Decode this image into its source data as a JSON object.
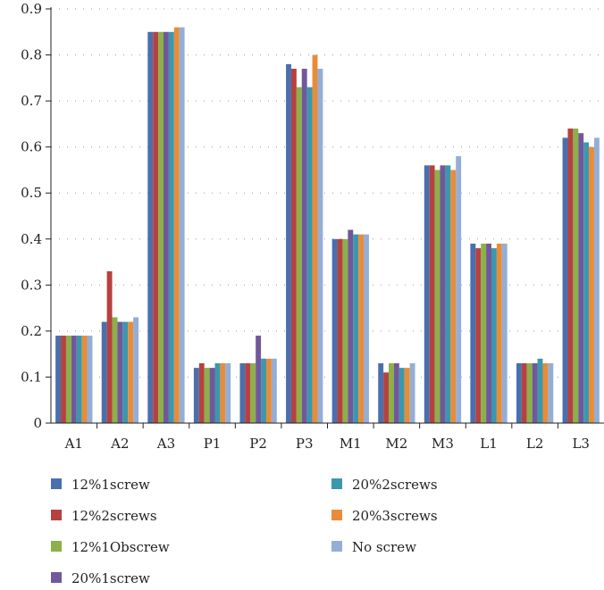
{
  "chart_data": {
    "type": "bar",
    "categories": [
      "A1",
      "A2",
      "A3",
      "P1",
      "P2",
      "P3",
      "M1",
      "M2",
      "M3",
      "L1",
      "L2",
      "L3"
    ],
    "ylim": [
      0,
      0.9
    ],
    "yticks": [
      "0",
      "0.1",
      "0.2",
      "0.3",
      "0.4",
      "0.5",
      "0.6",
      "0.7",
      "0.8",
      "0.9"
    ],
    "grid": "horizontal-dotted",
    "legend_position": "bottom",
    "series": [
      {
        "name": "12%1screw",
        "color": "#4a6fae",
        "values": [
          0.19,
          0.22,
          0.85,
          0.12,
          0.13,
          0.78,
          0.4,
          0.13,
          0.56,
          0.39,
          0.13,
          0.62
        ]
      },
      {
        "name": "12%2screws",
        "color": "#b5423f",
        "values": [
          0.19,
          0.33,
          0.85,
          0.13,
          0.13,
          0.77,
          0.4,
          0.11,
          0.56,
          0.38,
          0.13,
          0.64
        ]
      },
      {
        "name": "12%1Obscrew",
        "color": "#8cb04a",
        "values": [
          0.19,
          0.23,
          0.85,
          0.12,
          0.13,
          0.73,
          0.4,
          0.13,
          0.55,
          0.39,
          0.13,
          0.64
        ]
      },
      {
        "name": "20%1screw",
        "color": "#71589a",
        "values": [
          0.19,
          0.22,
          0.85,
          0.12,
          0.19,
          0.77,
          0.42,
          0.13,
          0.56,
          0.39,
          0.13,
          0.63
        ]
      },
      {
        "name": "20%2screws",
        "color": "#3c97ad",
        "values": [
          0.19,
          0.22,
          0.85,
          0.13,
          0.14,
          0.73,
          0.41,
          0.12,
          0.56,
          0.38,
          0.14,
          0.61
        ]
      },
      {
        "name": "20%3screws",
        "color": "#e88c3a",
        "values": [
          0.19,
          0.22,
          0.86,
          0.13,
          0.14,
          0.8,
          0.41,
          0.12,
          0.55,
          0.39,
          0.13,
          0.6
        ]
      },
      {
        "name": "No screw",
        "color": "#94aed6",
        "values": [
          0.19,
          0.23,
          0.86,
          0.13,
          0.14,
          0.77,
          0.41,
          0.13,
          0.58,
          0.39,
          0.13,
          0.62
        ]
      }
    ]
  }
}
